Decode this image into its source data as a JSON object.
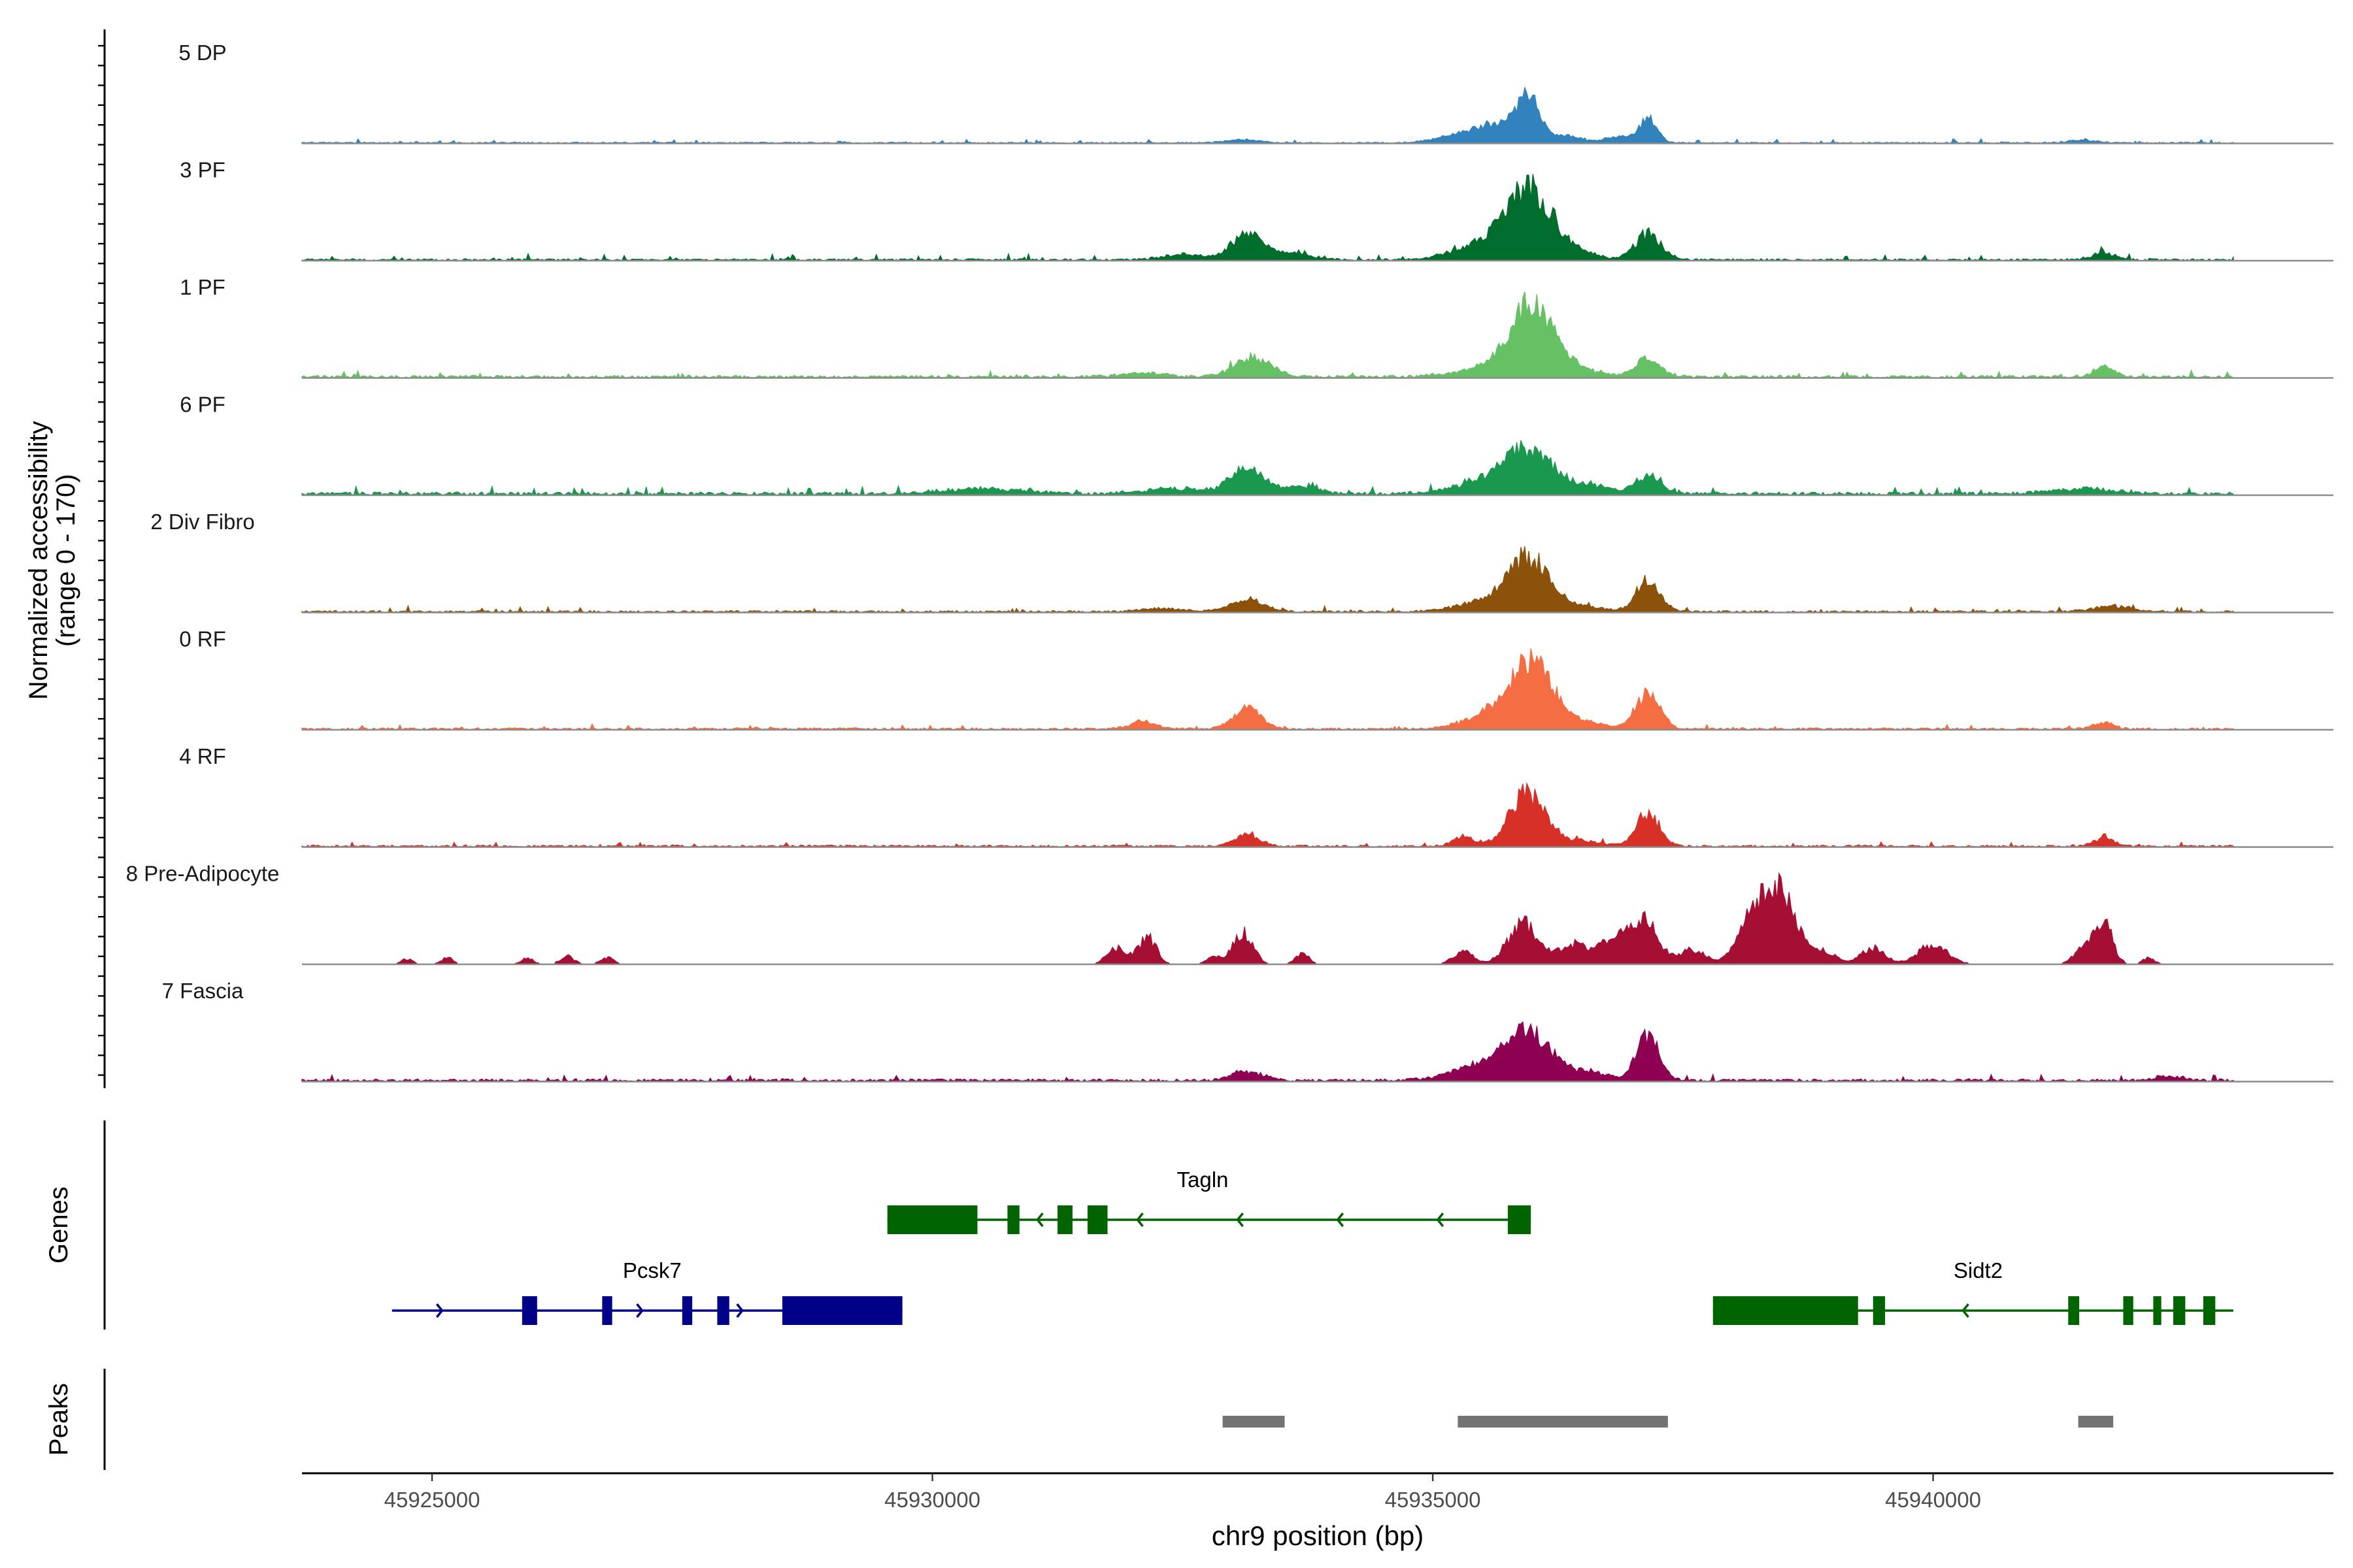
{
  "chart_data": {
    "type": "area",
    "region": "chr9",
    "xlabel": "chr9 position (bp)",
    "ylabel_lines": [
      "Normalized accessibility",
      "(range 0 - 170)"
    ],
    "ylim": [
      0,
      170
    ],
    "xlim": [
      45923700,
      45944000
    ],
    "xticks": [
      45925000,
      45930000,
      45935000,
      45940000
    ],
    "xtick_labels": [
      "45925000",
      "45930000",
      "45935000",
      "45940000"
    ],
    "track_span": [
      45923700,
      45943000
    ],
    "grid": false,
    "legend": "none",
    "series": [
      {
        "name": "5 DP",
        "color": "#3182BD",
        "baseline": 2,
        "noise": 3,
        "peaks": [
          [
            45933100,
            5,
            150
          ],
          [
            45935300,
            10,
            250
          ],
          [
            45935700,
            25,
            250
          ],
          [
            45935950,
            60,
            110
          ],
          [
            45936350,
            10,
            150
          ],
          [
            45936850,
            10,
            120
          ],
          [
            45937150,
            37,
            90
          ],
          [
            45941500,
            4,
            150
          ]
        ]
      },
      {
        "name": "3 PF",
        "color": "#006D2C",
        "baseline": 3,
        "noise": 4,
        "peaks": [
          [
            45932500,
            8,
            200
          ],
          [
            45933150,
            38,
            160
          ],
          [
            45933600,
            10,
            200
          ],
          [
            45935500,
            20,
            300
          ],
          [
            45935950,
            105,
            230
          ],
          [
            45936400,
            12,
            200
          ],
          [
            45937150,
            40,
            130
          ],
          [
            45941700,
            10,
            120
          ]
        ]
      },
      {
        "name": "1 PF",
        "color": "#66C164",
        "baseline": 4,
        "noise": 4,
        "peaks": [
          [
            45932100,
            6,
            200
          ],
          [
            45933200,
            30,
            180
          ],
          [
            45935500,
            12,
            300
          ],
          [
            45936000,
            108,
            220
          ],
          [
            45936500,
            8,
            200
          ],
          [
            45937150,
            28,
            120
          ],
          [
            45941700,
            15,
            100
          ]
        ]
      },
      {
        "name": "6 PF",
        "color": "#1A9850",
        "baseline": 5,
        "noise": 5,
        "peaks": [
          [
            45930500,
            8,
            400
          ],
          [
            45932400,
            8,
            300
          ],
          [
            45933150,
            40,
            170
          ],
          [
            45933700,
            12,
            150
          ],
          [
            45935500,
            18,
            300
          ],
          [
            45935950,
            60,
            230
          ],
          [
            45936500,
            14,
            250
          ],
          [
            45937150,
            28,
            120
          ],
          [
            45941500,
            8,
            300
          ]
        ]
      },
      {
        "name": "2 Div Fibro",
        "color": "#8C510A",
        "baseline": 3,
        "noise": 4,
        "peaks": [
          [
            45932300,
            5,
            200
          ],
          [
            45933150,
            18,
            170
          ],
          [
            45935500,
            15,
            250
          ],
          [
            45935950,
            82,
            200
          ],
          [
            45936500,
            8,
            200
          ],
          [
            45937150,
            45,
            120
          ],
          [
            45941800,
            8,
            200
          ]
        ]
      },
      {
        "name": "0 RF",
        "color": "#F46D43",
        "baseline": 3,
        "noise": 3,
        "peaks": [
          [
            45932100,
            12,
            120
          ],
          [
            45933150,
            32,
            140
          ],
          [
            45935600,
            25,
            250
          ],
          [
            45936000,
            103,
            200
          ],
          [
            45936500,
            10,
            200
          ],
          [
            45937150,
            52,
            120
          ],
          [
            45941700,
            10,
            100
          ]
        ]
      },
      {
        "name": "4 RF",
        "color": "#D73027",
        "baseline": 3,
        "noise": 3,
        "peaks": [
          [
            45933150,
            18,
            120
          ],
          [
            45935300,
            14,
            100
          ],
          [
            45935950,
            80,
            180
          ],
          [
            45936500,
            8,
            200
          ],
          [
            45937150,
            52,
            110
          ],
          [
            45941700,
            12,
            100
          ]
        ]
      },
      {
        "name": "8 Pre-Adipocyte",
        "color": "#A50F34",
        "baseline": 0,
        "noise": 4,
        "sparse": true,
        "peaks": [
          [
            45924750,
            8,
            60
          ],
          [
            45925150,
            10,
            60
          ],
          [
            45925950,
            10,
            60
          ],
          [
            45926350,
            12,
            70
          ],
          [
            45926750,
            10,
            70
          ],
          [
            45931850,
            25,
            100
          ],
          [
            45932150,
            40,
            90
          ],
          [
            45932800,
            12,
            70
          ],
          [
            45933100,
            48,
            100
          ],
          [
            45933700,
            15,
            70
          ],
          [
            45935300,
            20,
            100
          ],
          [
            45935900,
            60,
            150
          ],
          [
            45936400,
            30,
            150
          ],
          [
            45936800,
            32,
            150
          ],
          [
            45937100,
            65,
            150
          ],
          [
            45937600,
            22,
            120
          ],
          [
            45938200,
            78,
            150
          ],
          [
            45938500,
            98,
            150
          ],
          [
            45938900,
            20,
            120
          ],
          [
            45939400,
            24,
            120
          ],
          [
            45940000,
            30,
            150
          ],
          [
            45941500,
            25,
            90
          ],
          [
            45941700,
            65,
            90
          ],
          [
            45942150,
            10,
            60
          ]
        ]
      },
      {
        "name": "7 Fascia",
        "color": "#8E0152",
        "baseline": 4,
        "noise": 4,
        "peaks": [
          [
            45933150,
            13,
            150
          ],
          [
            45935500,
            22,
            300
          ],
          [
            45935950,
            67,
            220
          ],
          [
            45936500,
            12,
            250
          ],
          [
            45937150,
            70,
            110
          ],
          [
            45942350,
            6,
            150
          ]
        ]
      }
    ],
    "genes": [
      {
        "name": "Tagln",
        "strand": "-",
        "start": 45929550,
        "end": 45935980,
        "exons": [
          [
            45929550,
            45930450
          ],
          [
            45930750,
            45930870
          ],
          [
            45931250,
            45931400
          ],
          [
            45931550,
            45931750
          ],
          [
            45935750,
            45935980
          ]
        ]
      },
      {
        "name": "Pcsk7",
        "strand": "+",
        "start": 45924600,
        "end": 45929700,
        "exons": [
          [
            45925900,
            45926050
          ],
          [
            45926700,
            45926800
          ],
          [
            45927500,
            45927600
          ],
          [
            45927850,
            45927970
          ],
          [
            45928500,
            45929700
          ]
        ]
      },
      {
        "name": "Sidt2",
        "strand": "-",
        "start": 45937800,
        "end": 45943000,
        "exons": [
          [
            45937800,
            45939250
          ],
          [
            45939400,
            45939520
          ],
          [
            45941350,
            45941460
          ],
          [
            45941900,
            45942000
          ],
          [
            45942200,
            45942280
          ],
          [
            45942400,
            45942520
          ],
          [
            45942700,
            45942820
          ]
        ]
      }
    ],
    "peaks_track": {
      "label": "Peaks",
      "regions": [
        [
          45932900,
          45933520
        ],
        [
          45935250,
          45937350
        ],
        [
          45941450,
          45941800
        ]
      ]
    },
    "panel_labels": {
      "genes": "Genes",
      "peaks": "Peaks"
    }
  }
}
